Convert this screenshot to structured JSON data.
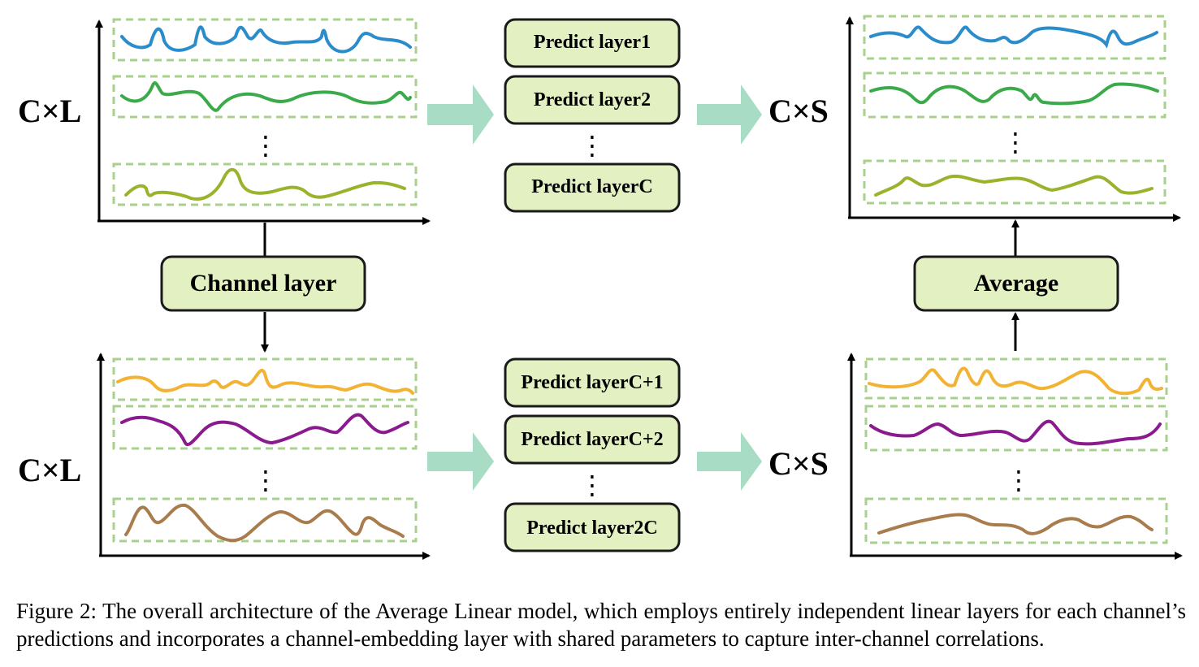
{
  "labels": {
    "top_input_dim": "C×L",
    "top_output_dim": "C×S",
    "bottom_input_dim": "C×L",
    "bottom_output_dim": "C×S"
  },
  "boxes": {
    "predict_layer_1": "Predict layer1",
    "predict_layer_2": "Predict layer2",
    "predict_layer_c": "Predict layerC",
    "predict_layer_c1": "Predict layerC+1",
    "predict_layer_c2": "Predict layerC+2",
    "predict_layer_2c": "Predict layer2C",
    "channel_layer": "Channel layer",
    "average": "Average"
  },
  "ellipsis": "⋮",
  "colors": {
    "box_fill": "#e3f0c2",
    "box_stroke": "#1a1a1a",
    "dashed_border": "#a9d18e",
    "flow_arrow": "#a8dcc5",
    "series_blue": "#2b8ccb",
    "series_green": "#3aaa4a",
    "series_olive": "#99b32c",
    "series_orange": "#f2b233",
    "series_purple": "#8b1a8e",
    "series_brown": "#a87c4c"
  },
  "caption": "Figure 2: The overall architecture of the Average Linear model, which employs entirely independent linear layers for each channel’s predictions and incorporates a channel-embedding layer with shared parameters to capture inter-channel correlations."
}
